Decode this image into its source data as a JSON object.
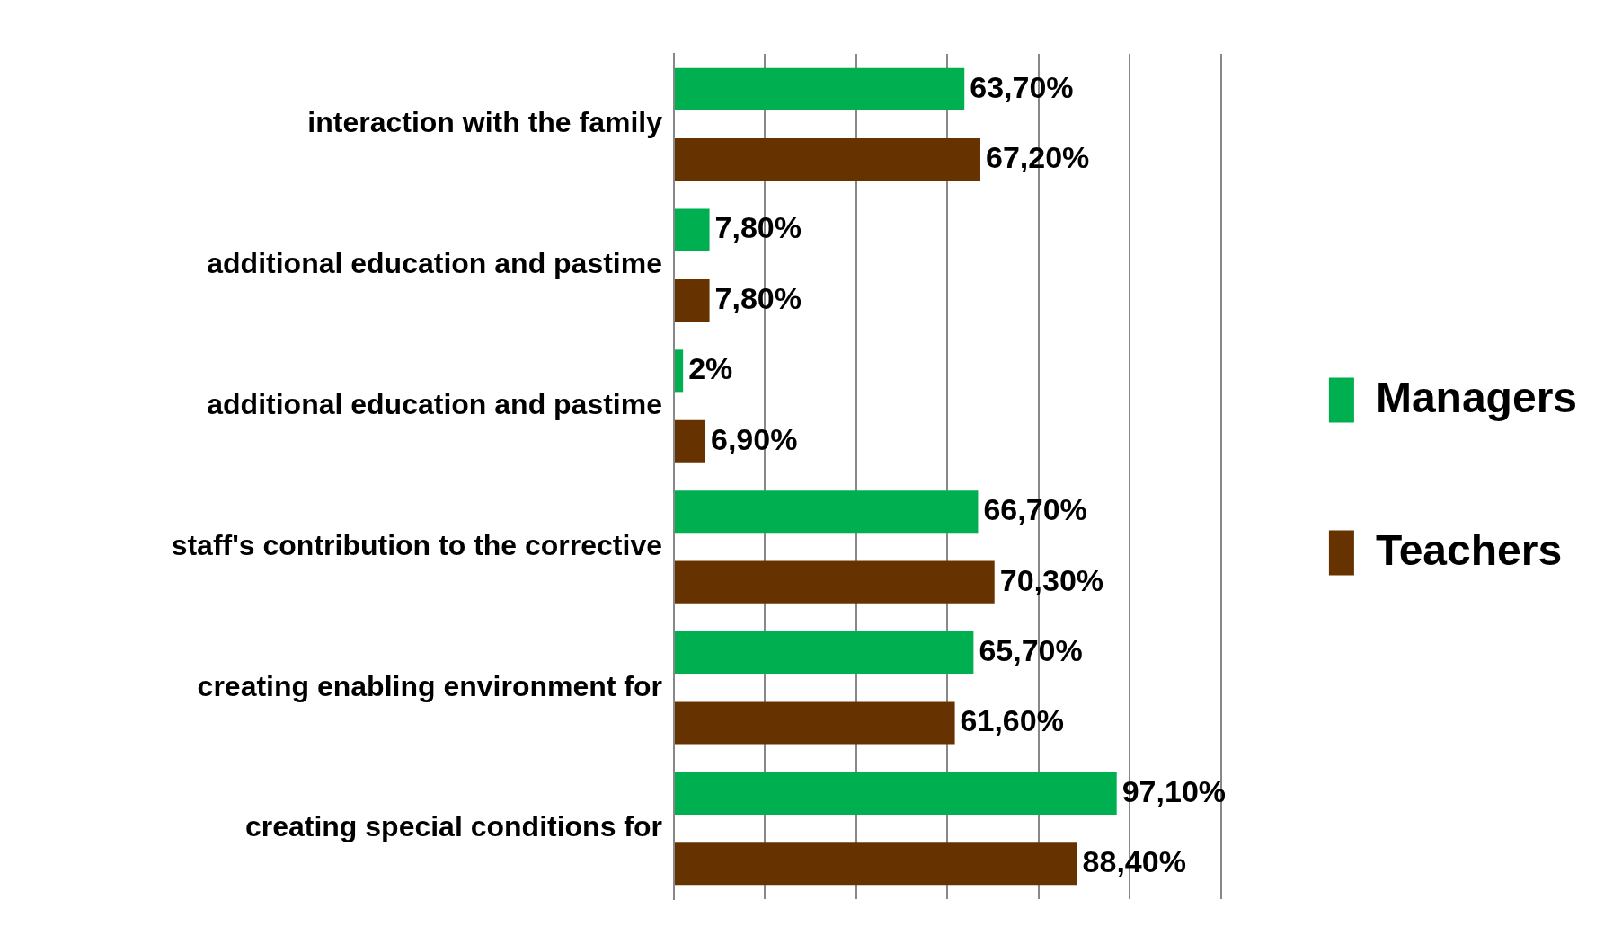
{
  "chart_data": {
    "type": "bar",
    "orientation": "horizontal",
    "categories": [
      "interaction with the family",
      "additional education and pastime",
      "additional education and pastime",
      "staff's contribution to the corrective",
      "creating enabling environment for",
      "creating special conditions for"
    ],
    "series": [
      {
        "name": "Managers",
        "color": "#00b050",
        "values": [
          63.7,
          7.8,
          2,
          66.7,
          65.7,
          97.1
        ],
        "value_labels": [
          "63,70%",
          "7,80%",
          "2%",
          "66,70%",
          "65,70%",
          "97,10%"
        ]
      },
      {
        "name": "Teachers",
        "color": "#663300",
        "values": [
          67.2,
          7.8,
          6.9,
          70.3,
          61.6,
          88.4
        ],
        "value_labels": [
          "67,20%",
          "7,80%",
          "6,90%",
          "70,30%",
          "61,60%",
          "88,40%"
        ]
      }
    ],
    "xlim": [
      0,
      120
    ],
    "xticks": [
      {
        "value": 0,
        "label": null
      },
      {
        "value": 20,
        "label": null
      },
      {
        "value": 40,
        "label": null
      },
      {
        "value": 60,
        "label": null
      },
      {
        "value": 80,
        "label": null
      },
      {
        "value": 100,
        "label": null
      },
      {
        "value": 120,
        "label": null
      }
    ],
    "grid": "x",
    "legend": "right",
    "tick_labels": "y"
  }
}
